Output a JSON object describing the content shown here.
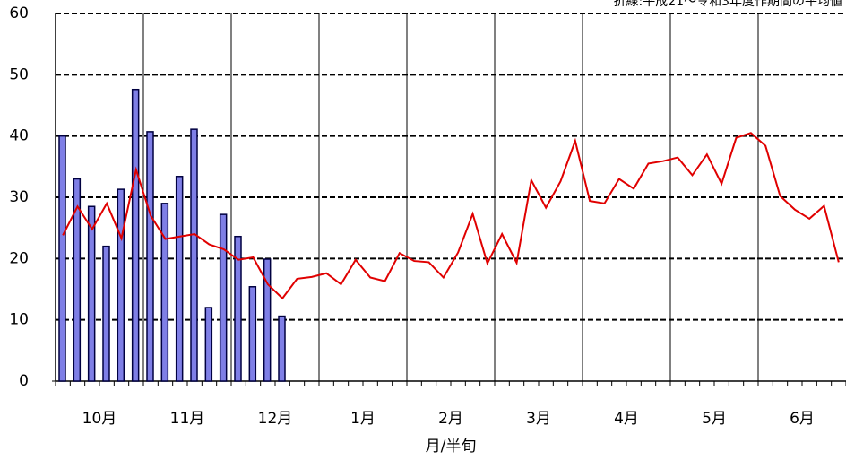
{
  "chart_data": {
    "type": "bar_line",
    "note": "折線:平成21～令和3年度作期間の平均値",
    "xlabel": "月/半旬",
    "months": [
      "10月",
      "11月",
      "12月",
      "1月",
      "2月",
      "3月",
      "4月",
      "5月",
      "6月"
    ],
    "ylim": [
      0,
      60
    ],
    "yticks": [
      0,
      10,
      20,
      30,
      40,
      50,
      60
    ],
    "grid": true,
    "series": [
      {
        "type": "bar",
        "color": "#7f7fe6",
        "values": [
          40,
          33,
          28.5,
          22,
          31.3,
          47.6,
          40.7,
          29,
          33.4,
          41.1,
          12,
          27.2,
          23.6,
          15.4,
          19.9,
          10.6,
          null,
          null,
          null,
          null,
          null,
          null,
          null,
          null,
          null,
          null,
          null,
          null,
          null,
          null,
          null,
          null,
          null,
          null,
          null,
          null,
          null,
          null,
          null,
          null,
          null,
          null,
          null,
          null,
          null,
          null,
          null,
          null,
          null,
          null,
          null,
          null,
          null,
          null
        ]
      },
      {
        "type": "line",
        "color": "#e00000",
        "values": [
          23.8,
          28.5,
          24.8,
          29,
          23.3,
          34.5,
          27,
          23.2,
          23.6,
          24,
          22.3,
          21.5,
          19.8,
          20.2,
          15.8,
          13.5,
          16.7,
          17,
          17.6,
          15.8,
          19.8,
          16.9,
          16.3,
          20.9,
          19.6,
          19.4,
          16.9,
          21,
          27.3,
          19.2,
          24,
          19.3,
          32.8,
          28.3,
          32.6,
          39.2,
          29.4,
          29,
          33,
          31.4,
          35.5,
          35.9,
          36.5,
          33.6,
          37,
          32.2,
          39.7,
          40.5,
          38.4,
          30.2,
          28,
          26.5,
          28.6,
          19.4
        ]
      }
    ]
  }
}
